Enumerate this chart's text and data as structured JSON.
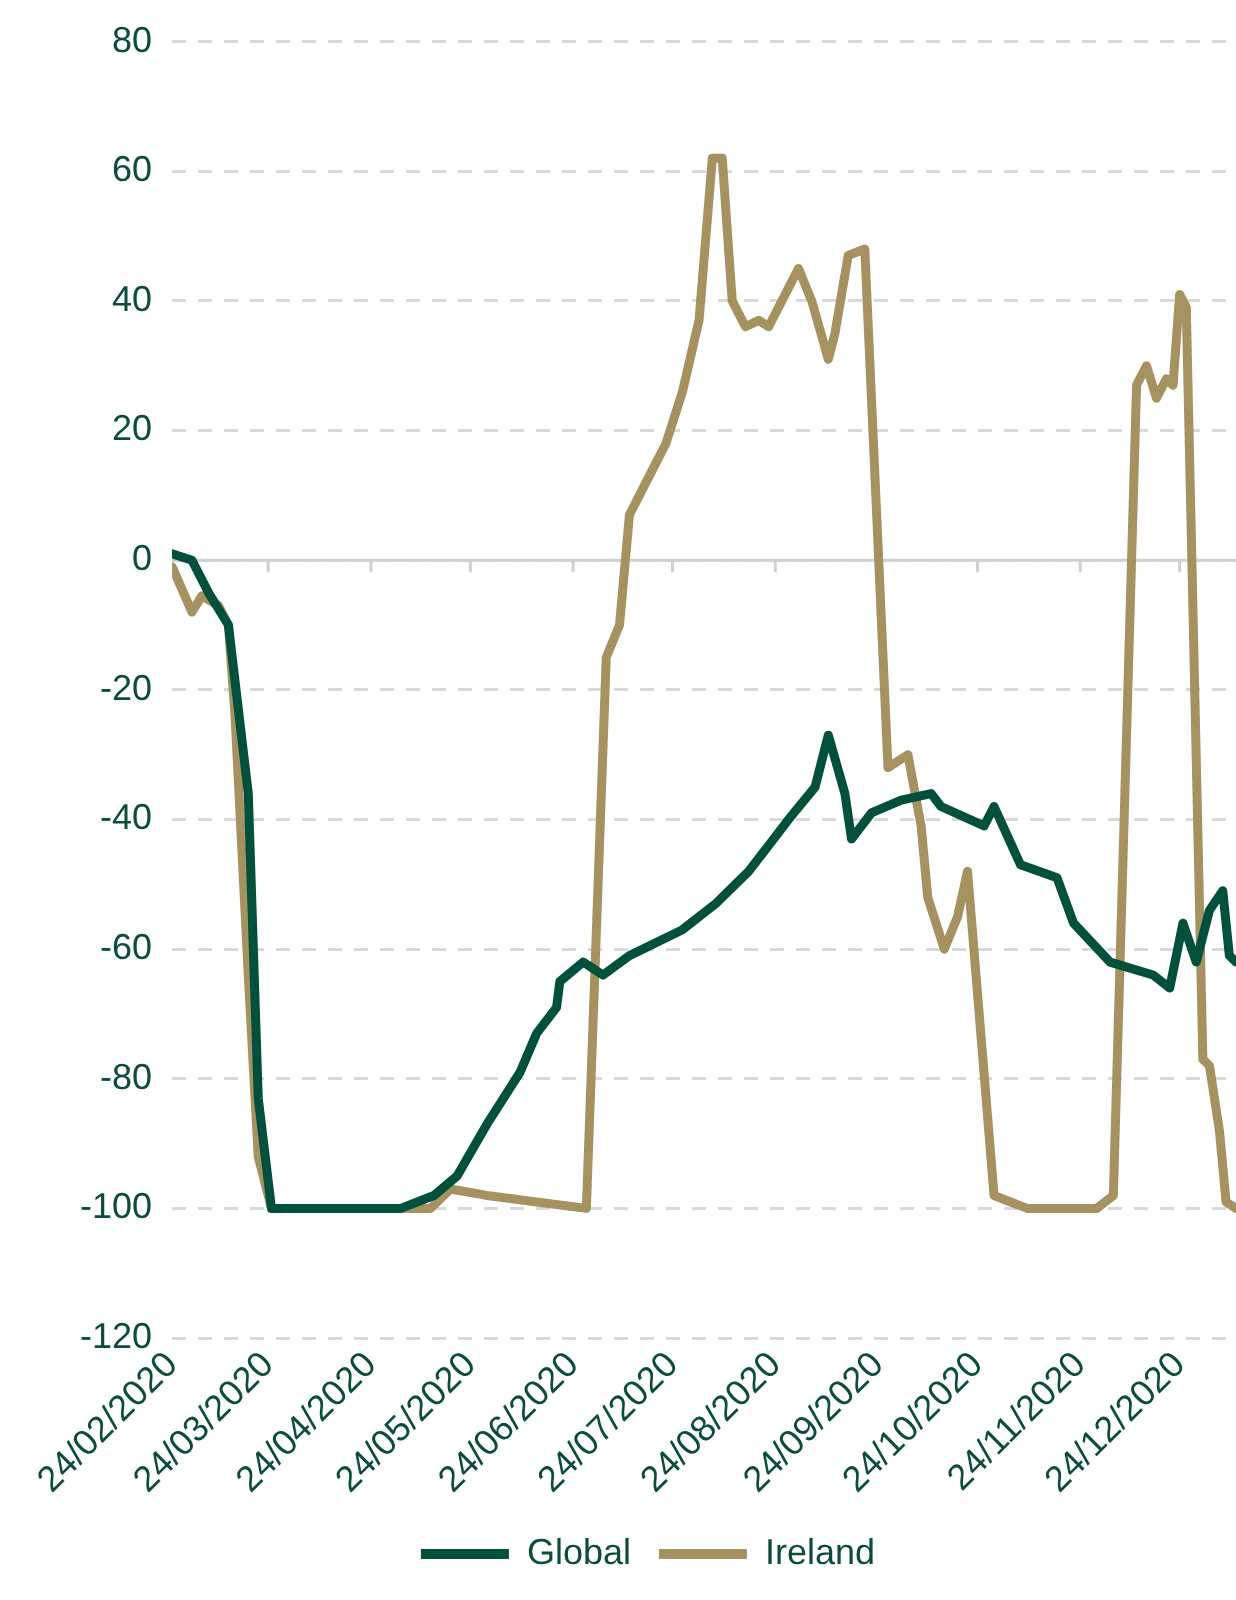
{
  "chart_data": {
    "type": "line",
    "x": [
      "2020-02-24",
      "2020-03-01",
      "2020-03-06",
      "2020-03-12",
      "2020-03-18",
      "2020-03-21",
      "2020-03-25",
      "2020-05-03",
      "2020-05-13",
      "2020-05-20",
      "2020-05-29",
      "2020-06-08",
      "2020-06-13",
      "2020-06-19",
      "2020-06-20",
      "2020-06-27",
      "2020-07-03",
      "2020-07-11",
      "2020-07-27",
      "2020-08-06",
      "2020-08-16",
      "2020-08-28",
      "2020-09-05",
      "2020-09-09",
      "2020-09-14",
      "2020-09-16",
      "2020-09-22",
      "2020-10-01",
      "2020-10-10",
      "2020-10-13",
      "2020-10-26",
      "2020-10-29",
      "2020-11-06",
      "2020-11-17",
      "2020-11-22",
      "2020-12-03",
      "2020-12-16",
      "2020-12-21",
      "2020-12-25",
      "2020-12-29",
      "2021-01-02",
      "2021-01-06",
      "2021-01-08",
      "2021-01-10"
    ],
    "series": [
      {
        "name": "Global",
        "color": "#00503c",
        "values": [
          1,
          0,
          -5,
          -10,
          -36,
          -83,
          -100,
          -100,
          -98,
          -95,
          -87,
          -79,
          -73,
          -69,
          -65,
          -62,
          -64,
          -61,
          -57,
          -53,
          -48,
          -40,
          -35,
          -27,
          -36,
          -43,
          -39,
          -37,
          -36,
          -38,
          -41,
          -38,
          -47,
          -49,
          -56,
          -62,
          -64,
          -66,
          -56,
          -62,
          -54,
          -51,
          -61,
          -62
        ]
      },
      {
        "name": "Ireland",
        "color": "#a69160",
        "x": [
          "2020-02-24",
          "2020-03-01",
          "2020-03-04",
          "2020-03-09",
          "2020-03-12",
          "2020-03-14",
          "2020-03-18",
          "2020-03-21",
          "2020-03-25",
          "2020-05-12",
          "2020-05-18",
          "2020-05-29",
          "2020-06-13",
          "2020-06-28",
          "2020-07-04",
          "2020-07-08",
          "2020-07-11",
          "2020-07-17",
          "2020-07-22",
          "2020-07-27",
          "2020-08-01",
          "2020-08-05",
          "2020-08-08",
          "2020-08-11",
          "2020-08-15",
          "2020-08-19",
          "2020-08-22",
          "2020-08-27",
          "2020-08-31",
          "2020-09-04",
          "2020-09-09",
          "2020-09-11",
          "2020-09-15",
          "2020-09-20",
          "2020-09-27",
          "2020-10-03",
          "2020-10-07",
          "2020-10-09",
          "2020-10-14",
          "2020-10-18",
          "2020-10-21",
          "2020-10-29",
          "2020-11-08",
          "2020-11-29",
          "2020-12-04",
          "2020-12-11",
          "2020-12-14",
          "2020-12-17",
          "2020-12-20",
          "2020-12-22",
          "2020-12-24",
          "2020-12-26",
          "2020-12-31",
          "2021-01-02",
          "2021-01-05",
          "2021-01-07",
          "2021-01-10"
        ],
        "values": [
          -1,
          -8,
          -5.5,
          -7,
          -10,
          -24,
          -64,
          -92,
          -100,
          -100,
          -97,
          -98,
          -99,
          -100,
          -15,
          -10,
          7,
          13,
          18,
          26,
          37,
          62,
          62,
          40,
          36,
          37,
          36,
          41,
          45,
          40,
          31,
          35,
          47,
          48,
          -32,
          -30,
          -41,
          -52,
          -60,
          -55,
          -48,
          -98,
          -100,
          -100,
          -98,
          27,
          30,
          25,
          28,
          27,
          41,
          39,
          -77,
          -78,
          -88,
          -99,
          -100
        ]
      }
    ],
    "xlim": [
      "2020-02-24",
      "2021-01-10"
    ],
    "xticks": [
      {
        "value": "2020-02-24",
        "label": "24/02/2020"
      },
      {
        "value": "2020-03-24",
        "label": "24/03/2020"
      },
      {
        "value": "2020-04-24",
        "label": "24/04/2020"
      },
      {
        "value": "2020-05-24",
        "label": "24/05/2020"
      },
      {
        "value": "2020-06-24",
        "label": "24/06/2020"
      },
      {
        "value": "2020-07-24",
        "label": "24/07/2020"
      },
      {
        "value": "2020-08-24",
        "label": "24/08/2020"
      },
      {
        "value": "2020-09-24",
        "label": "24/09/2020"
      },
      {
        "value": "2020-10-24",
        "label": "24/10/2020"
      },
      {
        "value": "2020-11-24",
        "label": "24/11/2020"
      },
      {
        "value": "2020-12-24",
        "label": "24/12/2020"
      }
    ],
    "ylim": [
      -120,
      80
    ],
    "yticks": [
      -120,
      -100,
      -80,
      -60,
      -40,
      -20,
      0,
      20,
      40,
      60,
      80
    ],
    "grid": "y",
    "legend": "bottom",
    "marker": "none",
    "line_style": "solid"
  }
}
